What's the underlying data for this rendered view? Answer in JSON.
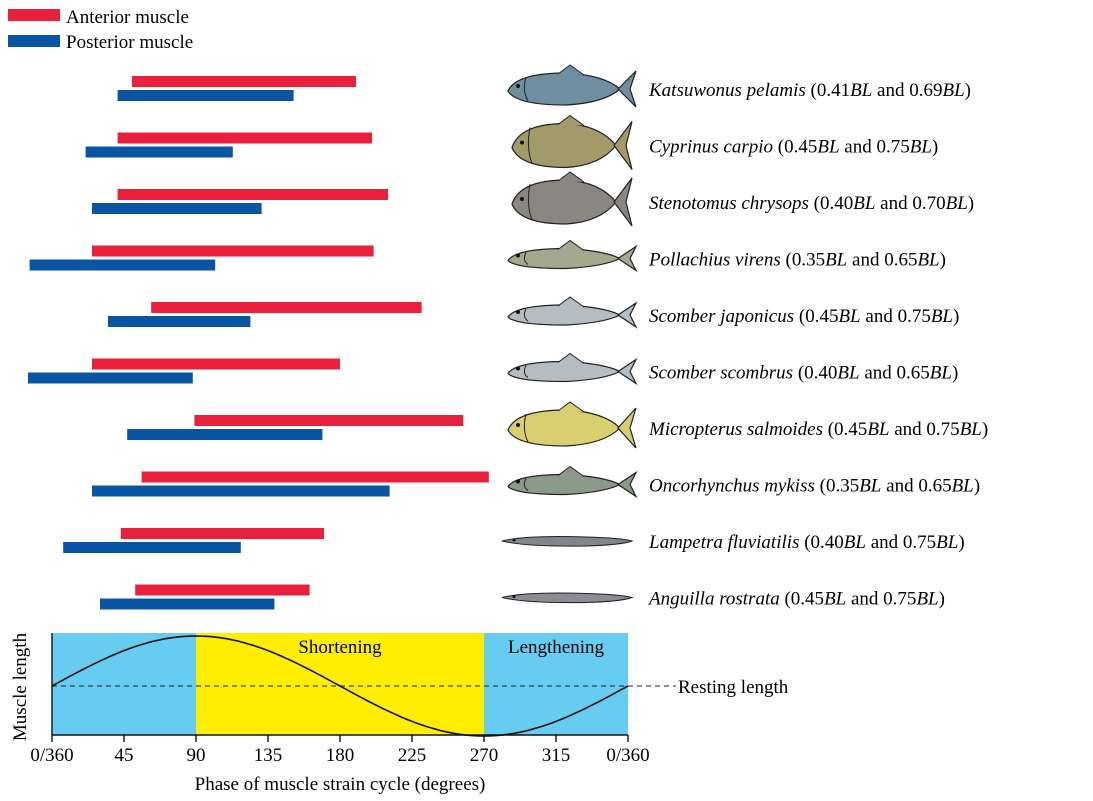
{
  "chart_data": {
    "type": "bar",
    "chart_kind": "floating horizontal bars (phase intervals) with strain-cycle panel",
    "legend": [
      {
        "name": "Anterior muscle",
        "color": "#e8203c"
      },
      {
        "name": "Posterior muscle",
        "color": "#0a54a4"
      }
    ],
    "legend_placement": "top-left",
    "xlabel": "Phase of muscle strain cycle (degrees)",
    "ylabel": "Muscle length",
    "xlim": [
      0,
      360
    ],
    "x_ticks": [
      {
        "value": 0,
        "label": "0/360"
      },
      {
        "value": 45,
        "label": "45"
      },
      {
        "value": 90,
        "label": "90"
      },
      {
        "value": 135,
        "label": "135"
      },
      {
        "value": 180,
        "label": "180"
      },
      {
        "value": 225,
        "label": "225"
      },
      {
        "value": 270,
        "label": "270"
      },
      {
        "value": 315,
        "label": "315"
      },
      {
        "value": 360,
        "label": "0/360"
      }
    ],
    "species": [
      {
        "name": "Katsuwonus pelamis",
        "pos1": "0.41",
        "pos2": "0.69",
        "fish_color": "#6e8fa0",
        "fish_shape": "tuna",
        "anterior": [
          50,
          190
        ],
        "posterior": [
          41,
          151
        ]
      },
      {
        "name": "Cyprinus carpio",
        "pos1": "0.45",
        "pos2": "0.75",
        "fish_color": "#a39a6a",
        "fish_shape": "deep",
        "anterior": [
          41,
          200
        ],
        "posterior": [
          21,
          113
        ]
      },
      {
        "name": "Stenotomus chrysops",
        "pos1": "0.40",
        "pos2": "0.70",
        "fish_color": "#8a8680",
        "fish_shape": "deep",
        "anterior": [
          41,
          210
        ],
        "posterior": [
          25,
          131
        ]
      },
      {
        "name": "Pollachius virens",
        "pos1": "0.35",
        "pos2": "0.65",
        "fish_color": "#a4a88c",
        "fish_shape": "slender",
        "anterior": [
          25,
          201
        ],
        "posterior": [
          -14,
          102
        ]
      },
      {
        "name": "Scomber japonicus",
        "pos1": "0.45",
        "pos2": "0.75",
        "fish_color": "#b4bcc4",
        "fish_shape": "slender",
        "anterior": [
          62,
          231
        ],
        "posterior": [
          35,
          124
        ]
      },
      {
        "name": "Scomber scombrus",
        "pos1": "0.40",
        "pos2": "0.65",
        "fish_color": "#b4bcc4",
        "fish_shape": "slender",
        "anterior": [
          25,
          180
        ],
        "posterior": [
          -15,
          88
        ]
      },
      {
        "name": "Micropterus salmoides",
        "pos1": "0.45",
        "pos2": "0.75",
        "fish_color": "#d8d070",
        "fish_shape": "bass",
        "anterior": [
          89,
          257
        ],
        "posterior": [
          47,
          169
        ]
      },
      {
        "name": "Oncorhynchus mykiss",
        "pos1": "0.35",
        "pos2": "0.65",
        "fish_color": "#8a9a88",
        "fish_shape": "slender",
        "anterior": [
          56,
          273
        ],
        "posterior": [
          25,
          211
        ]
      },
      {
        "name": "Lampetra fluviatilis",
        "pos1": "0.40",
        "pos2": "0.75",
        "fish_color": "#7c8790",
        "fish_shape": "eel",
        "anterior": [
          43,
          170
        ],
        "posterior": [
          7,
          118
        ]
      },
      {
        "name": "Anguilla rostrata",
        "pos1": "0.45",
        "pos2": "0.75",
        "fish_color": "#8c8c94",
        "fish_shape": "eel",
        "anterior": [
          52,
          161
        ],
        "posterior": [
          30,
          139
        ]
      }
    ],
    "label_parts": {
      "open": "(",
      "bl": "BL",
      "and": "and",
      "close": ")"
    },
    "strain_panel": {
      "bands": [
        {
          "from": 0,
          "to": 90,
          "label": "",
          "color": "#66ccf2"
        },
        {
          "from": 90,
          "to": 270,
          "label": "Shortening",
          "color": "#ffee00"
        },
        {
          "from": 270,
          "to": 360,
          "label": "Lengthening",
          "color": "#66ccf2"
        }
      ],
      "resting_label": "Resting length",
      "curve": "sine (peak at 90, trough at 270)"
    }
  }
}
